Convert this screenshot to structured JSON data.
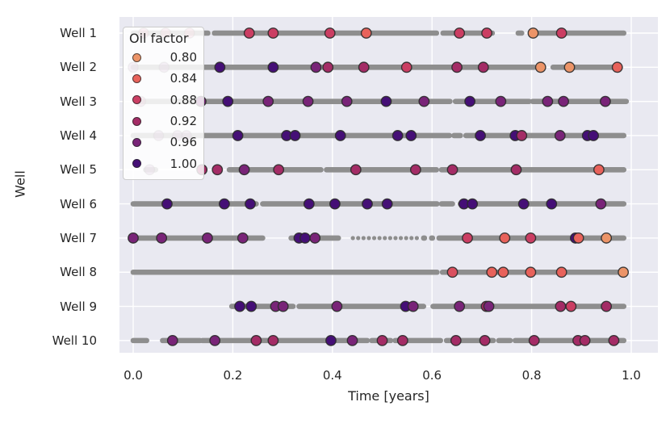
{
  "chart_data": {
    "type": "scatter",
    "title": "",
    "xlabel": "Time [years]",
    "ylabel": "Well",
    "xlim": [
      -0.028,
      1.053
    ],
    "grid": true,
    "xticks": {
      "values": [
        0.0,
        0.2,
        0.4,
        0.6,
        0.8,
        1.0
      ],
      "labels": [
        "0.0",
        "0.2",
        "0.4",
        "0.6",
        "0.8",
        "1.0"
      ]
    },
    "legend": {
      "title": "Oil factor",
      "position": "upper left",
      "entries": [
        {
          "value": "0.80",
          "color": "#EC9468"
        },
        {
          "value": "0.84",
          "color": "#E8625B"
        },
        {
          "value": "0.88",
          "color": "#CB3E63"
        },
        {
          "value": "0.92",
          "color": "#A42C66"
        },
        {
          "value": "0.96",
          "color": "#792478"
        },
        {
          "value": "1.00",
          "color": "#450F76"
        }
      ]
    },
    "colors": {
      "plot_background": "#E9E9F1",
      "gridline": "#FFFFFF",
      "timeline": "#8E8E8E",
      "dot_edge": "#2B2B2B",
      "text": "#262626",
      "legend_border": "#CCCCCC"
    },
    "wells": [
      {
        "label": "Well 1",
        "segments": [
          [
            0.0,
            0.15
          ],
          [
            0.163,
            0.609
          ],
          [
            0.622,
            0.721
          ],
          [
            0.773,
            0.78
          ],
          [
            0.799,
            0.985
          ]
        ],
        "dots": [
          [
            0.021,
            0.88,
            1
          ],
          [
            0.065,
            0.88,
            1
          ],
          [
            0.113,
            0.88,
            1
          ],
          [
            0.233,
            0.88
          ],
          [
            0.281,
            0.88
          ],
          [
            0.395,
            0.88
          ],
          [
            0.468,
            0.84
          ],
          [
            0.655,
            0.88
          ],
          [
            0.71,
            0.88
          ],
          [
            0.803,
            0.8
          ],
          [
            0.86,
            0.88
          ]
        ]
      },
      {
        "label": "Well 2",
        "segments": [
          [
            0.0,
            0.805
          ],
          [
            0.843,
            0.978
          ]
        ],
        "dots": [
          [
            0.0,
            0.96,
            1
          ],
          [
            0.062,
            0.96,
            1
          ],
          [
            0.174,
            1.0
          ],
          [
            0.281,
            1.0
          ],
          [
            0.367,
            0.96
          ],
          [
            0.391,
            0.92
          ],
          [
            0.463,
            0.92
          ],
          [
            0.549,
            0.88
          ],
          [
            0.65,
            0.92
          ],
          [
            0.703,
            0.92
          ],
          [
            0.818,
            0.8
          ],
          [
            0.876,
            0.8
          ],
          [
            0.972,
            0.84
          ]
        ]
      },
      {
        "label": "Well 3",
        "segments": [
          [
            0.01,
            0.636
          ],
          [
            0.647,
            0.795
          ],
          [
            0.802,
            0.99
          ]
        ],
        "dots": [
          [
            0.015,
            0.92,
            1
          ],
          [
            0.136,
            0.96
          ],
          [
            0.19,
            1.0
          ],
          [
            0.271,
            0.96
          ],
          [
            0.351,
            0.96
          ],
          [
            0.429,
            0.96
          ],
          [
            0.508,
            1.0
          ],
          [
            0.584,
            0.96
          ],
          [
            0.676,
            1.0
          ],
          [
            0.738,
            0.96
          ],
          [
            0.832,
            0.96
          ],
          [
            0.864,
            0.96
          ],
          [
            0.948,
            0.96
          ]
        ]
      },
      {
        "label": "Well 4",
        "segments": [
          [
            0.0,
            0.635
          ],
          [
            0.644,
            0.657
          ],
          [
            0.668,
            0.985
          ]
        ],
        "dots": [
          [
            0.051,
            0.96,
            1
          ],
          [
            0.089,
            0.96,
            1
          ],
          [
            0.107,
            0.96,
            1
          ],
          [
            0.21,
            1.0
          ],
          [
            0.308,
            1.0
          ],
          [
            0.325,
            1.0
          ],
          [
            0.416,
            1.0
          ],
          [
            0.531,
            1.0
          ],
          [
            0.558,
            1.0
          ],
          [
            0.697,
            1.0
          ],
          [
            0.767,
            1.0
          ],
          [
            0.78,
            0.92
          ],
          [
            0.857,
            0.96
          ],
          [
            0.912,
            1.0
          ],
          [
            0.924,
            1.0
          ]
        ]
      },
      {
        "label": "Well 5",
        "segments": [
          [
            0.025,
            0.045
          ],
          [
            0.135,
            0.144
          ],
          [
            0.193,
            0.377
          ],
          [
            0.388,
            0.609
          ],
          [
            0.619,
            0.985
          ]
        ],
        "dots": [
          [
            0.033,
            0.96,
            1
          ],
          [
            0.138,
            0.92
          ],
          [
            0.169,
            0.92
          ],
          [
            0.223,
            0.96
          ],
          [
            0.292,
            0.92
          ],
          [
            0.447,
            0.92
          ],
          [
            0.567,
            0.92
          ],
          [
            0.641,
            0.92
          ],
          [
            0.769,
            0.92
          ],
          [
            0.935,
            0.84
          ]
        ]
      },
      {
        "label": "Well 6",
        "segments": [
          [
            0.0,
            0.247
          ],
          [
            0.26,
            0.61
          ],
          [
            0.619,
            0.641
          ],
          [
            0.657,
            0.985
          ]
        ],
        "dots": [
          [
            0.068,
            1.0
          ],
          [
            0.183,
            1.0
          ],
          [
            0.235,
            1.0
          ],
          [
            0.353,
            1.0
          ],
          [
            0.405,
            1.0
          ],
          [
            0.47,
            1.0
          ],
          [
            0.51,
            1.0
          ],
          [
            0.664,
            1.0
          ],
          [
            0.681,
            1.0
          ],
          [
            0.784,
            1.0
          ],
          [
            0.84,
            1.0
          ],
          [
            0.939,
            0.96
          ]
        ]
      },
      {
        "label": "Well 7",
        "segments": [
          [
            0.0,
            0.26
          ],
          [
            0.317,
            0.412
          ],
          [
            0.441,
            0.577,
            "sparse"
          ],
          [
            0.583,
            0.585
          ],
          [
            0.599,
            0.601
          ],
          [
            0.614,
            0.985
          ]
        ],
        "dots": [
          [
            0.0,
            0.96
          ],
          [
            0.057,
            0.96
          ],
          [
            0.149,
            0.96
          ],
          [
            0.22,
            0.96
          ],
          [
            0.333,
            1.0
          ],
          [
            0.345,
            1.0
          ],
          [
            0.365,
            0.96
          ],
          [
            0.671,
            0.88
          ],
          [
            0.746,
            0.84
          ],
          [
            0.798,
            0.88
          ],
          [
            0.888,
            1.0
          ],
          [
            0.894,
            0.84
          ],
          [
            0.95,
            0.8
          ]
        ]
      },
      {
        "label": "Well 8",
        "segments": [
          [
            0.0,
            0.61
          ],
          [
            0.621,
            0.985
          ]
        ],
        "dots": [
          [
            0.641,
            0.86
          ],
          [
            0.72,
            0.84
          ],
          [
            0.743,
            0.84
          ],
          [
            0.798,
            0.84
          ],
          [
            0.86,
            0.84
          ],
          [
            0.984,
            0.8
          ]
        ]
      },
      {
        "label": "Well 9",
        "segments": [
          [
            0.198,
            0.321
          ],
          [
            0.333,
            0.583
          ],
          [
            0.602,
            0.985
          ]
        ],
        "dots": [
          [
            0.214,
            1.0
          ],
          [
            0.237,
            1.0
          ],
          [
            0.286,
            0.96
          ],
          [
            0.301,
            0.96
          ],
          [
            0.409,
            0.96
          ],
          [
            0.547,
            1.0
          ],
          [
            0.562,
            0.96
          ],
          [
            0.655,
            0.96
          ],
          [
            0.709,
            0.92
          ],
          [
            0.714,
            0.96
          ],
          [
            0.858,
            0.92
          ],
          [
            0.879,
            0.88
          ],
          [
            0.95,
            0.92
          ]
        ]
      },
      {
        "label": "Well 10",
        "segments": [
          [
            0.0,
            0.027
          ],
          [
            0.059,
            0.134
          ],
          [
            0.139,
            0.47
          ],
          [
            0.479,
            0.517
          ],
          [
            0.526,
            0.617
          ],
          [
            0.629,
            0.723
          ],
          [
            0.734,
            0.757
          ],
          [
            0.767,
            0.985
          ]
        ],
        "dots": [
          [
            0.079,
            0.96
          ],
          [
            0.164,
            0.96
          ],
          [
            0.247,
            0.92
          ],
          [
            0.281,
            0.92
          ],
          [
            0.397,
            1.0
          ],
          [
            0.44,
            0.96
          ],
          [
            0.5,
            0.92
          ],
          [
            0.541,
            0.92
          ],
          [
            0.648,
            0.92
          ],
          [
            0.706,
            0.92
          ],
          [
            0.805,
            0.92
          ],
          [
            0.893,
            0.92
          ],
          [
            0.907,
            0.92
          ],
          [
            0.965,
            0.92
          ]
        ]
      }
    ]
  }
}
